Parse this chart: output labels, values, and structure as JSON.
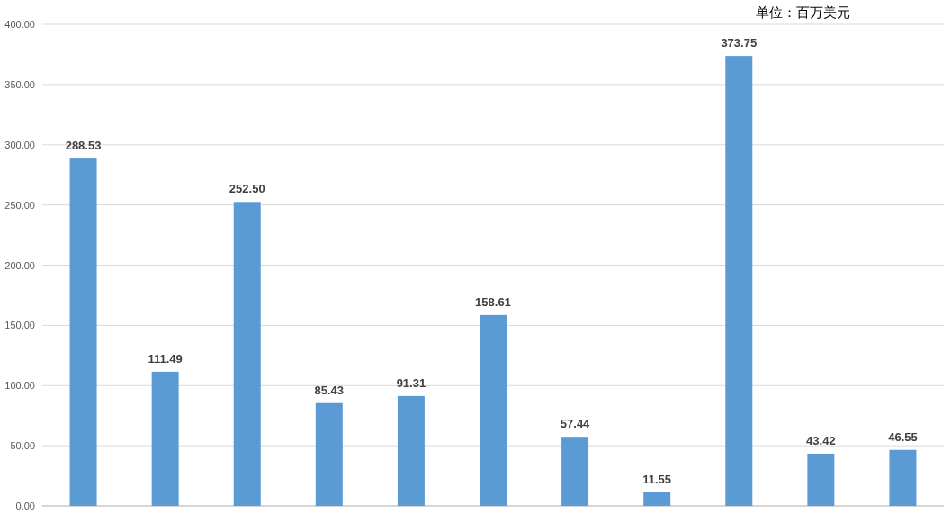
{
  "chart_data": {
    "type": "bar",
    "categories": [
      null,
      null,
      null,
      null,
      null,
      null,
      null,
      null,
      null,
      null,
      null
    ],
    "series": [
      {
        "color": "#5b9bd5",
        "values": [
          288.53,
          111.49,
          252.5,
          85.43,
          91.31,
          158.61,
          57.44,
          11.55,
          373.75,
          43.42,
          46.55
        ]
      }
    ],
    "value_labels": [
      "288.53",
      "111.49",
      "252.50",
      "85.43",
      "91.31",
      "158.61",
      "57.44",
      "11.55",
      "373.75",
      "43.42",
      "46.55"
    ],
    "ylim": [
      0,
      400
    ],
    "yticks": [
      {
        "value": 0,
        "label": "0.00"
      },
      {
        "value": 50,
        "label": "50.00"
      },
      {
        "value": 100,
        "label": "100.00"
      },
      {
        "value": 150,
        "label": "150.00"
      },
      {
        "value": 200,
        "label": "200.00"
      },
      {
        "value": 250,
        "label": "250.00"
      },
      {
        "value": 300,
        "label": "300.00"
      },
      {
        "value": 350,
        "label": "350.00"
      },
      {
        "value": 400,
        "label": "400.00"
      }
    ],
    "grid": "y",
    "annotations": [
      "单位：百万美元"
    ]
  }
}
